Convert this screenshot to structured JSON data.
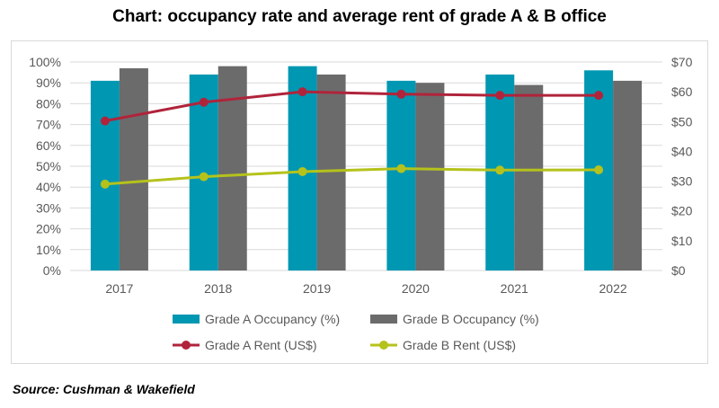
{
  "title": "Chart: occupancy rate and average rent of grade A & B office",
  "source": "Source: Cushman & Wakefield",
  "chart_data": {
    "type": "bar",
    "categories": [
      "2017",
      "2018",
      "2019",
      "2020",
      "2021",
      "2022"
    ],
    "y_left": {
      "ticks": [
        "0%",
        "10%",
        "20%",
        "30%",
        "40%",
        "50%",
        "60%",
        "70%",
        "80%",
        "90%",
        "100%"
      ],
      "range": [
        0,
        100
      ]
    },
    "y_right": {
      "ticks": [
        "$0",
        "$10",
        "$20",
        "$30",
        "$40",
        "$50",
        "$60",
        "$70"
      ],
      "range": [
        0,
        70
      ]
    },
    "grid": true,
    "legend_placement": "bottom",
    "series": [
      {
        "name": "Grade A Occupancy (%)",
        "type": "bar",
        "axis": "left",
        "color": "#0097b2",
        "values": [
          91,
          94,
          98,
          91,
          94,
          96
        ]
      },
      {
        "name": "Grade B Occupancy (%)",
        "type": "bar",
        "axis": "left",
        "color": "#6b6b6b",
        "values": [
          97,
          98,
          94,
          90,
          89,
          91
        ]
      },
      {
        "name": "Grade A Rent (US$)",
        "type": "line",
        "axis": "right",
        "color": "#b0243b",
        "values": [
          50.2,
          56.5,
          60.0,
          59.2,
          58.8,
          58.8
        ]
      },
      {
        "name": "Grade B Rent (US$)",
        "type": "line",
        "axis": "right",
        "color": "#b5c21b",
        "values": [
          29.0,
          31.5,
          33.2,
          34.2,
          33.7,
          33.8
        ]
      }
    ]
  }
}
